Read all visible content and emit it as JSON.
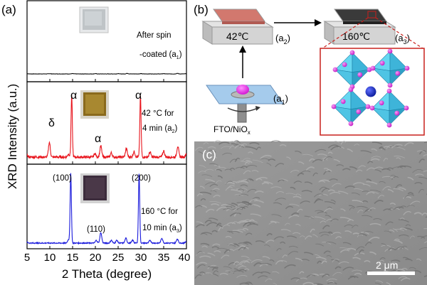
{
  "panels": {
    "a": {
      "label": "(a)",
      "ylabel": "XRD Intensity (a.u.)",
      "xlabel": "2 Theta (degree)",
      "xticks": [
        "5",
        "10",
        "15",
        "20",
        "25",
        "30",
        "35",
        "40"
      ],
      "top": {
        "note_line1": "After spin",
        "note_line2": "-coated (a",
        "note_sub": "1",
        "note_end": ")"
      },
      "mid": {
        "note_line1": "42 °C for",
        "note_line2": "4 min (a",
        "note_sub": "2",
        "note_end": ")",
        "peaks": [
          "δ",
          "α",
          "α",
          "α"
        ]
      },
      "bot": {
        "note_line1": "160 °C for",
        "note_line2": "10 min (a",
        "note_sub": "3",
        "note_end": ")",
        "peaks": [
          "(100)",
          "(110)",
          "(200)"
        ]
      }
    },
    "b": {
      "label": "(b)",
      "temp_a2": "42℃",
      "temp_a3": "160℃",
      "a1": "(a",
      "a1_sub": "1",
      "a1_end": ")",
      "a2": "(a",
      "a2_sub": "2",
      "a2_end": ")",
      "a3": "(a",
      "a3_sub": "3",
      "a3_end": ")",
      "substrate": "FTO/NiO",
      "substrate_sub": "x"
    },
    "c": {
      "label": "(c)",
      "scalebar": "2 μm"
    }
  },
  "colors": {
    "top_pattern": "#000000",
    "mid_pattern": "#e8141c",
    "bot_pattern": "#1a1adc",
    "octahedra": "#35c6e8",
    "x_site": "#d22ad2",
    "a_site": "#1030c0",
    "box_border": "#c8201c"
  },
  "chart_data": [
    {
      "type": "line",
      "title": "",
      "xlabel": "2 Theta (degree)",
      "ylabel": "XRD Intensity (a.u.)",
      "xlim": [
        5,
        40
      ],
      "series": [
        {
          "name": "After spin-coated (a1)",
          "x": [
            5,
            10,
            15,
            20,
            25,
            27,
            30,
            35,
            38,
            40
          ],
          "y": [
            1,
            1,
            1,
            1,
            1,
            2,
            1,
            1,
            2,
            1
          ]
        },
        {
          "name": "42 °C for 4 min (a2)",
          "x": [
            5,
            9.9,
            14.1,
            14.8,
            19.9,
            21.2,
            23.5,
            26.8,
            28.5,
            29.9,
            32,
            35,
            38.1,
            40
          ],
          "y": [
            3,
            24,
            5,
            100,
            6,
            18,
            7,
            14,
            9,
            100,
            8,
            10,
            18,
            6
          ]
        },
        {
          "name": "160 °C for 10 min (a3)",
          "x": [
            5,
            14.1,
            14.6,
            20.2,
            21.2,
            23.5,
            24.7,
            26.7,
            28.2,
            29.6,
            32,
            34.6,
            38,
            40
          ],
          "y": [
            1,
            5,
            100,
            4,
            15,
            4,
            4,
            7,
            4,
            100,
            4,
            7,
            6,
            3
          ]
        }
      ]
    }
  ]
}
